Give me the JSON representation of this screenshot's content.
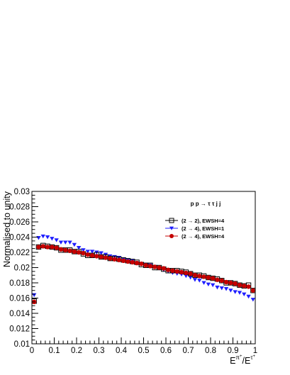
{
  "chart_data": {
    "type": "scatter",
    "title": "",
    "annotation": "p p → τ τ j j",
    "xlabel": "E^{π⁺}/E^{τ⁺}",
    "xlabel_parts": {
      "main": "E",
      "sup1": "π",
      "sup1_sign": "+",
      "slash": "/E",
      "sup2": "τ",
      "sup2_sign": "+"
    },
    "ylabel": "Normalised to unity",
    "xlim": [
      0,
      1
    ],
    "ylim": [
      0.01,
      0.03
    ],
    "xticks": [
      "0",
      "0.1",
      "0.2",
      "0.3",
      "0.4",
      "0.5",
      "0.6",
      "0.7",
      "0.8",
      "0.9",
      "1"
    ],
    "yticks": [
      "0.01",
      "0.012",
      "0.014",
      "0.016",
      "0.018",
      "0.02",
      "0.022",
      "0.024",
      "0.026",
      "0.028",
      "0.03"
    ],
    "grid": false,
    "legend_position": "top-right",
    "x": [
      0.01,
      0.03,
      0.05,
      0.07,
      0.09,
      0.11,
      0.13,
      0.15,
      0.17,
      0.19,
      0.21,
      0.23,
      0.25,
      0.27,
      0.29,
      0.31,
      0.33,
      0.35,
      0.37,
      0.39,
      0.41,
      0.43,
      0.45,
      0.47,
      0.49,
      0.51,
      0.53,
      0.55,
      0.57,
      0.59,
      0.61,
      0.63,
      0.65,
      0.67,
      0.69,
      0.71,
      0.73,
      0.75,
      0.77,
      0.79,
      0.81,
      0.83,
      0.85,
      0.87,
      0.89,
      0.91,
      0.93,
      0.95,
      0.97,
      0.99
    ],
    "series": [
      {
        "name": "(2 → 2), EWSH=4",
        "marker": "open-square",
        "color": "#000000",
        "values": [
          0.0156,
          0.0227,
          0.0229,
          0.0228,
          0.0227,
          0.0226,
          0.0223,
          0.0223,
          0.0223,
          0.0221,
          0.0221,
          0.0218,
          0.0216,
          0.0216,
          0.0217,
          0.0214,
          0.0214,
          0.0212,
          0.0212,
          0.0211,
          0.021,
          0.0209,
          0.0208,
          0.0207,
          0.0204,
          0.0203,
          0.0203,
          0.02,
          0.02,
          0.0198,
          0.0196,
          0.0196,
          0.0196,
          0.0195,
          0.0194,
          0.0192,
          0.019,
          0.019,
          0.0189,
          0.0187,
          0.0186,
          0.0185,
          0.0183,
          0.018,
          0.018,
          0.0179,
          0.0177,
          0.0176,
          0.0177,
          0.017
        ]
      },
      {
        "name": "(2 → 4), EWSH=1",
        "marker": "down-triangle",
        "color": "#1f1fff",
        "values": [
          0.0164,
          0.0239,
          0.0241,
          0.024,
          0.0238,
          0.0236,
          0.0233,
          0.0233,
          0.0233,
          0.023,
          0.0226,
          0.0223,
          0.0221,
          0.0221,
          0.022,
          0.0219,
          0.0217,
          0.0215,
          0.0214,
          0.0213,
          0.0211,
          0.021,
          0.0209,
          0.0206,
          0.0205,
          0.0204,
          0.0203,
          0.0201,
          0.0199,
          0.0197,
          0.0195,
          0.0193,
          0.0192,
          0.0191,
          0.0189,
          0.0187,
          0.0184,
          0.0183,
          0.018,
          0.0178,
          0.0177,
          0.0174,
          0.0173,
          0.0172,
          0.017,
          0.0168,
          0.0167,
          0.0165,
          0.0162,
          0.0158
        ]
      },
      {
        "name": "(2 → 4), EWSH=4",
        "marker": "filled-circle",
        "color": "#c40000",
        "values": [
          0.0155,
          0.0227,
          0.0228,
          0.0227,
          0.0227,
          0.0226,
          0.0224,
          0.0223,
          0.0222,
          0.0221,
          0.022,
          0.0219,
          0.0217,
          0.0216,
          0.0215,
          0.0214,
          0.0213,
          0.0212,
          0.0211,
          0.021,
          0.0209,
          0.0208,
          0.0207,
          0.0206,
          0.0205,
          0.0203,
          0.0202,
          0.0201,
          0.02,
          0.0199,
          0.0197,
          0.0196,
          0.0195,
          0.0194,
          0.0193,
          0.0192,
          0.019,
          0.0189,
          0.0188,
          0.0187,
          0.0186,
          0.0184,
          0.0183,
          0.0181,
          0.018,
          0.0179,
          0.0177,
          0.0176,
          0.0175,
          0.017
        ]
      }
    ]
  }
}
